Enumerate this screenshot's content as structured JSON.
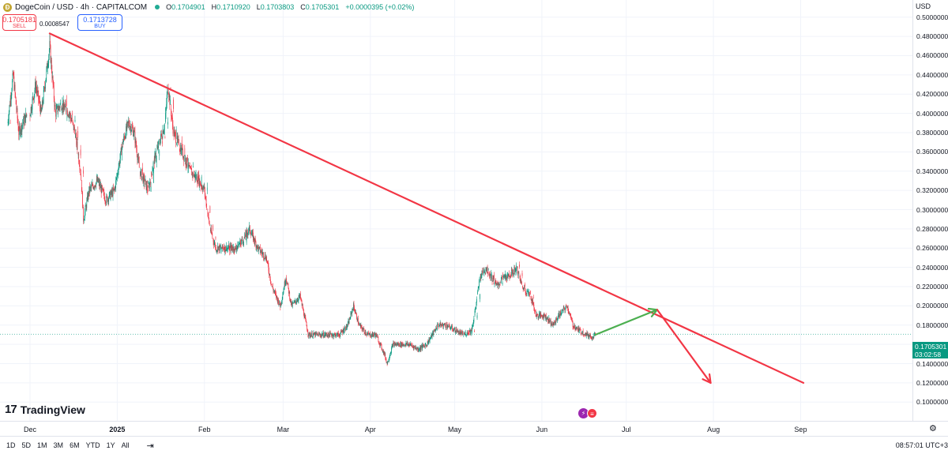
{
  "header": {
    "coin_icon": "Ð",
    "title": "DogeCoin / USD · 4h · CAPITALCOM",
    "ohlc": [
      {
        "label": "O",
        "value": "0.1704901"
      },
      {
        "label": "H",
        "value": "0.1710920"
      },
      {
        "label": "L",
        "value": "0.1703803"
      },
      {
        "label": "C",
        "value": "0.1705301"
      }
    ],
    "change": "+0.0000395 (+0.02%)"
  },
  "trade": {
    "sell_price": "0.1705181",
    "sell_label": "SELL",
    "spread": "0.0008547",
    "buy_price": "0.1713728",
    "buy_label": "BUY"
  },
  "logo": {
    "mark": "17",
    "text": "TradingView"
  },
  "price_scale": {
    "currency": "USD",
    "current_price": "0.1705301",
    "countdown": "03:02:58"
  },
  "bottom_bar": {
    "ranges": [
      "1D",
      "5D",
      "1M",
      "3M",
      "6M",
      "YTD",
      "1Y",
      "All"
    ],
    "clock": "08:57:01 UTC+3"
  },
  "colors": {
    "up": "#089981",
    "down": "#f23645",
    "trendline": "#f23645",
    "projection_up": "#4caf50",
    "projection_down": "#f23645",
    "grid": "#f0f3fa"
  },
  "chart_data": {
    "type": "candlestick",
    "title": "DogeCoin / USD · 4h · CAPITALCOM",
    "ylim": [
      0.09,
      0.51
    ],
    "yticks": [
      0.1,
      0.12,
      0.14,
      0.16,
      0.18,
      0.2,
      0.22,
      0.24,
      0.26,
      0.28,
      0.3,
      0.32,
      0.34,
      0.36,
      0.38,
      0.4,
      0.42,
      0.44,
      0.46,
      0.48,
      0.5
    ],
    "ytick_labels": [
      "0.1000000",
      "0.1200000",
      "0.1400000",
      "0.1600000",
      "0.1800000",
      "0.2000000",
      "0.2200000",
      "0.2400000",
      "0.2600000",
      "0.2800000",
      "0.3000000",
      "0.3200000",
      "0.3400000",
      "0.3600000",
      "0.3800000",
      "0.4000000",
      "0.4200000",
      "0.4400000",
      "0.4600000",
      "0.4800000",
      "0.5000000"
    ],
    "x_dates": [
      "2024-11-24",
      "2025-09-08"
    ],
    "xtick_labels": [
      {
        "label": "Dec",
        "date": "2024-12-01"
      },
      {
        "label": "2025",
        "date": "2025-01-01"
      },
      {
        "label": "Feb",
        "date": "2025-02-01"
      },
      {
        "label": "Mar",
        "date": "2025-03-01"
      },
      {
        "label": "Apr",
        "date": "2025-04-01"
      },
      {
        "label": "May",
        "date": "2025-05-01"
      },
      {
        "label": "Jun",
        "date": "2025-06-01"
      },
      {
        "label": "Jul",
        "date": "2025-07-01"
      },
      {
        "label": "Aug",
        "date": "2025-08-01"
      },
      {
        "label": "Sep",
        "date": "2025-09-01"
      }
    ],
    "price_path": [
      [
        "2024-11-24",
        0.39
      ],
      [
        "2024-11-26",
        0.44
      ],
      [
        "2024-11-28",
        0.38
      ],
      [
        "2024-12-01",
        0.4
      ],
      [
        "2024-12-03",
        0.43
      ],
      [
        "2024-12-05",
        0.4
      ],
      [
        "2024-12-08",
        0.47
      ],
      [
        "2024-12-10",
        0.4
      ],
      [
        "2024-12-12",
        0.41
      ],
      [
        "2024-12-15",
        0.4
      ],
      [
        "2024-12-17",
        0.38
      ],
      [
        "2024-12-19",
        0.34
      ],
      [
        "2024-12-20",
        0.29
      ],
      [
        "2024-12-22",
        0.32
      ],
      [
        "2024-12-25",
        0.33
      ],
      [
        "2024-12-28",
        0.31
      ],
      [
        "2024-12-31",
        0.32
      ],
      [
        "2025-01-03",
        0.37
      ],
      [
        "2025-01-05",
        0.39
      ],
      [
        "2025-01-07",
        0.38
      ],
      [
        "2025-01-09",
        0.34
      ],
      [
        "2025-01-12",
        0.32
      ],
      [
        "2025-01-14",
        0.35
      ],
      [
        "2025-01-16",
        0.37
      ],
      [
        "2025-01-18",
        0.39
      ],
      [
        "2025-01-19",
        0.43
      ],
      [
        "2025-01-21",
        0.38
      ],
      [
        "2025-01-24",
        0.36
      ],
      [
        "2025-01-27",
        0.34
      ],
      [
        "2025-01-30",
        0.33
      ],
      [
        "2025-02-01",
        0.32
      ],
      [
        "2025-02-03",
        0.28
      ],
      [
        "2025-02-05",
        0.26
      ],
      [
        "2025-02-08",
        0.26
      ],
      [
        "2025-02-12",
        0.26
      ],
      [
        "2025-02-15",
        0.27
      ],
      [
        "2025-02-17",
        0.28
      ],
      [
        "2025-02-20",
        0.26
      ],
      [
        "2025-02-23",
        0.25
      ],
      [
        "2025-02-25",
        0.22
      ],
      [
        "2025-02-28",
        0.2
      ],
      [
        "2025-03-02",
        0.23
      ],
      [
        "2025-03-04",
        0.2
      ],
      [
        "2025-03-07",
        0.21
      ],
      [
        "2025-03-10",
        0.17
      ],
      [
        "2025-03-12",
        0.17
      ],
      [
        "2025-03-15",
        0.17
      ],
      [
        "2025-03-18",
        0.17
      ],
      [
        "2025-03-21",
        0.17
      ],
      [
        "2025-03-24",
        0.18
      ],
      [
        "2025-03-26",
        0.2
      ],
      [
        "2025-03-28",
        0.18
      ],
      [
        "2025-03-31",
        0.17
      ],
      [
        "2025-04-03",
        0.17
      ],
      [
        "2025-04-06",
        0.15
      ],
      [
        "2025-04-07",
        0.14
      ],
      [
        "2025-04-09",
        0.16
      ],
      [
        "2025-04-12",
        0.16
      ],
      [
        "2025-04-15",
        0.16
      ],
      [
        "2025-04-18",
        0.155
      ],
      [
        "2025-04-21",
        0.16
      ],
      [
        "2025-04-23",
        0.17
      ],
      [
        "2025-04-25",
        0.18
      ],
      [
        "2025-04-28",
        0.18
      ],
      [
        "2025-05-01",
        0.175
      ],
      [
        "2025-05-04",
        0.17
      ],
      [
        "2025-05-07",
        0.175
      ],
      [
        "2025-05-08",
        0.19
      ],
      [
        "2025-05-10",
        0.23
      ],
      [
        "2025-05-12",
        0.24
      ],
      [
        "2025-05-14",
        0.23
      ],
      [
        "2025-05-16",
        0.22
      ],
      [
        "2025-05-18",
        0.23
      ],
      [
        "2025-05-20",
        0.23
      ],
      [
        "2025-05-23",
        0.24
      ],
      [
        "2025-05-25",
        0.22
      ],
      [
        "2025-05-28",
        0.21
      ],
      [
        "2025-05-30",
        0.19
      ],
      [
        "2025-06-02",
        0.19
      ],
      [
        "2025-06-05",
        0.18
      ],
      [
        "2025-06-07",
        0.19
      ],
      [
        "2025-06-10",
        0.2
      ],
      [
        "2025-06-12",
        0.18
      ],
      [
        "2025-06-14",
        0.175
      ],
      [
        "2025-06-17",
        0.17
      ],
      [
        "2025-06-19",
        0.168
      ],
      [
        "2025-06-20",
        0.1705
      ]
    ],
    "annotations": [
      {
        "type": "trendline",
        "from": [
          "2024-12-08",
          0.483
        ],
        "to": [
          "2025-09-02",
          0.12
        ]
      },
      {
        "type": "arrow",
        "color": "green",
        "from": [
          "2025-06-20",
          0.17
        ],
        "to": [
          "2025-07-12",
          0.196
        ]
      },
      {
        "type": "arrow",
        "color": "red",
        "from": [
          "2025-07-12",
          0.196
        ],
        "to": [
          "2025-07-31",
          0.12
        ]
      }
    ],
    "current_price": 0.1705301
  }
}
